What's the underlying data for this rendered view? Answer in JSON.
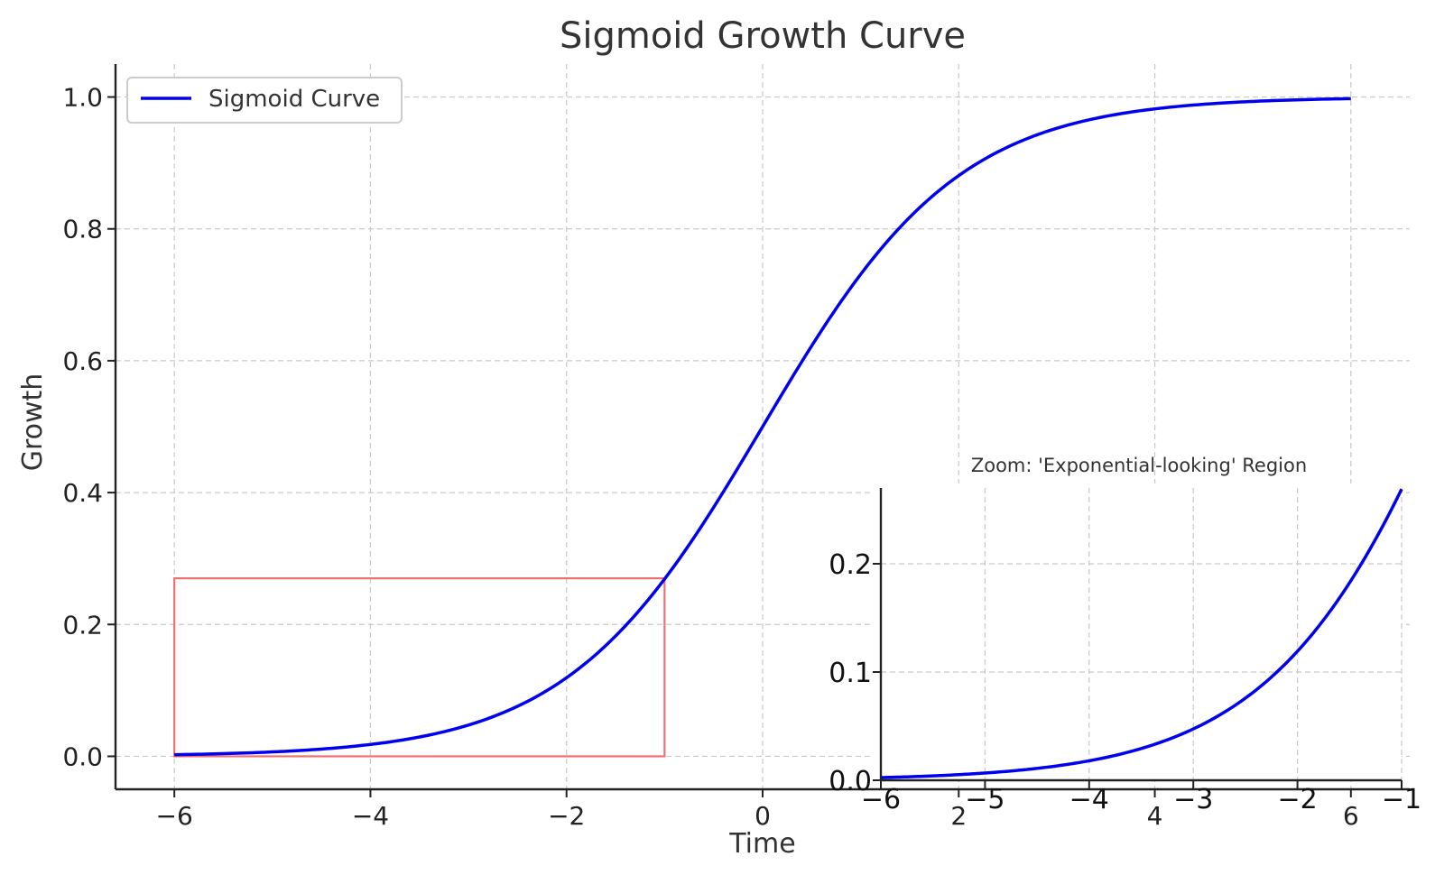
{
  "chart_data": [
    {
      "type": "line",
      "title": "Sigmoid Growth Curve",
      "xlabel": "Time",
      "ylabel": "Growth",
      "xlim": [
        -6.6,
        6.6
      ],
      "ylim": [
        -0.05,
        1.05
      ],
      "xticks": [
        -6,
        -4,
        -2,
        0,
        2,
        4,
        6
      ],
      "xtick_labels": [
        "−6",
        "−4",
        "−2",
        "0",
        "2",
        "4",
        "6"
      ],
      "yticks": [
        0.0,
        0.2,
        0.4,
        0.6,
        0.8,
        1.0
      ],
      "ytick_labels": [
        "0.0",
        "0.2",
        "0.4",
        "0.6",
        "0.8",
        "1.0"
      ],
      "grid": true,
      "legend": {
        "position": "upper-left",
        "entries": [
          "Sigmoid Curve"
        ]
      },
      "series": [
        {
          "name": "Sigmoid Curve",
          "color": "#0000ee",
          "function": "1/(1+exp(-x))",
          "x_range": [
            -6,
            6
          ],
          "sample_points": [
            {
              "x": -6,
              "y": 0.0025
            },
            {
              "x": -4,
              "y": 0.018
            },
            {
              "x": -2,
              "y": 0.119
            },
            {
              "x": 0,
              "y": 0.5
            },
            {
              "x": 2,
              "y": 0.881
            },
            {
              "x": 4,
              "y": 0.982
            },
            {
              "x": 6,
              "y": 0.9975
            }
          ]
        }
      ],
      "highlight_box": {
        "x_range": [
          -6,
          -1
        ],
        "y_range": [
          0,
          0.27
        ],
        "color": "#f07070"
      }
    },
    {
      "type": "line",
      "title": "Zoom: 'Exponential-looking' Region",
      "xlim": [
        -6,
        -1
      ],
      "ylim": [
        0,
        0.27
      ],
      "xticks": [
        -6,
        -5,
        -4,
        -3,
        -2,
        -1
      ],
      "xtick_labels": [
        "−6",
        "−5",
        "−4",
        "−3",
        "−2",
        "−1"
      ],
      "yticks": [
        0.0,
        0.1,
        0.2
      ],
      "ytick_labels": [
        "0.0",
        "0.1",
        "0.2"
      ],
      "grid": true,
      "series": [
        {
          "name": "Sigmoid Curve",
          "color": "#0000ee",
          "function": "1/(1+exp(-x))",
          "x_range": [
            -6,
            -1
          ]
        }
      ]
    }
  ]
}
